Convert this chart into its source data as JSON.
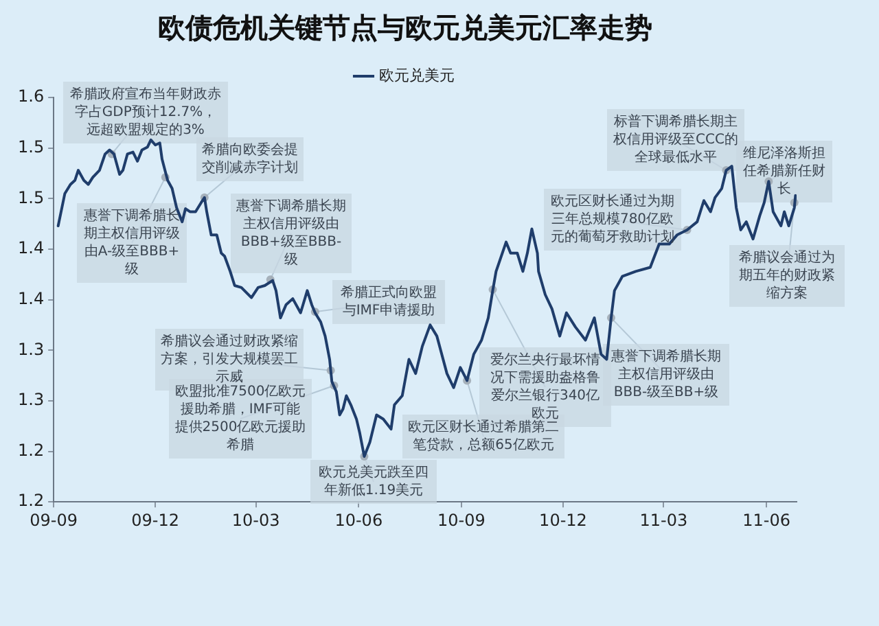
{
  "chart_data": {
    "type": "line",
    "title": "欧债危机关键节点与欧元兑美元汇率走势",
    "xlim": [
      "2009-09-01",
      "2011-06-28"
    ],
    "xticks": [
      {
        "value": "2009-09",
        "label": "09-09"
      },
      {
        "value": "2009-12",
        "label": "09-12"
      },
      {
        "value": "2010-03",
        "label": "10-03"
      },
      {
        "value": "2010-06",
        "label": "10-06"
      },
      {
        "value": "2010-09",
        "label": "10-09"
      },
      {
        "value": "2010-12",
        "label": "10-12"
      },
      {
        "value": "2011-03",
        "label": "11-03"
      },
      {
        "value": "2011-06",
        "label": "11-06"
      }
    ],
    "ylim": [
      1.15,
      1.55
    ],
    "yticks": [
      {
        "value": 1.15,
        "label": "1.2"
      },
      {
        "value": 1.2,
        "label": "1.2"
      },
      {
        "value": 1.25,
        "label": "1.3"
      },
      {
        "value": 1.3,
        "label": "1.3"
      },
      {
        "value": 1.35,
        "label": "1.4"
      },
      {
        "value": 1.4,
        "label": "1.4"
      },
      {
        "value": 1.45,
        "label": "1.5"
      },
      {
        "value": 1.5,
        "label": "1.5"
      },
      {
        "value": 1.55,
        "label": "1.6"
      }
    ],
    "grid": false,
    "legend": "top",
    "line_style": "solid",
    "series": [
      {
        "name": "欧元兑美元",
        "color": "#1f3d6b",
        "x": [
          "2009-09-05",
          "2009-09-11",
          "2009-09-16",
          "2009-09-20",
          "2009-09-23",
          "2009-09-28",
          "2009-10-02",
          "2009-10-06",
          "2009-10-12",
          "2009-10-17",
          "2009-10-21",
          "2009-10-25",
          "2009-10-30",
          "2009-11-02",
          "2009-11-06",
          "2009-11-11",
          "2009-11-15",
          "2009-11-19",
          "2009-11-24",
          "2009-11-27",
          "2009-12-01",
          "2009-12-05",
          "2009-12-07",
          "2009-12-12",
          "2009-12-16",
          "2009-12-20",
          "2009-12-25",
          "2009-12-28",
          "2010-01-01",
          "2010-01-06",
          "2010-01-11",
          "2010-01-14",
          "2010-01-16",
          "2010-01-20",
          "2010-01-25",
          "2010-01-29",
          "2010-02-01",
          "2010-02-06",
          "2010-02-10",
          "2010-02-16",
          "2010-02-25",
          "2010-03-03",
          "2010-03-09",
          "2010-03-16",
          "2010-03-19",
          "2010-03-23",
          "2010-03-28",
          "2010-04-03",
          "2010-04-10",
          "2010-04-16",
          "2010-04-20",
          "2010-04-23",
          "2010-04-28",
          "2010-05-02",
          "2010-05-06",
          "2010-05-08",
          "2010-05-12",
          "2010-05-15",
          "2010-05-18",
          "2010-05-21",
          "2010-05-25",
          "2010-05-30",
          "2010-06-02",
          "2010-06-06",
          "2010-06-11",
          "2010-06-17",
          "2010-06-23",
          "2010-06-30",
          "2010-07-03",
          "2010-07-10",
          "2010-07-16",
          "2010-07-22",
          "2010-07-28",
          "2010-08-04",
          "2010-08-10",
          "2010-08-19",
          "2010-08-25",
          "2010-08-31",
          "2010-09-06",
          "2010-09-12",
          "2010-09-19",
          "2010-09-25",
          "2010-09-29",
          "2010-10-02",
          "2010-10-11",
          "2010-10-15",
          "2010-10-21",
          "2010-10-26",
          "2010-10-30",
          "2010-11-03",
          "2010-11-08",
          "2010-11-09",
          "2010-11-15",
          "2010-11-21",
          "2010-11-28",
          "2010-12-04",
          "2010-12-12",
          "2010-12-21",
          "2010-12-29",
          "2011-01-04",
          "2011-01-09",
          "2011-01-13",
          "2011-01-16",
          "2011-01-23",
          "2011-02-04",
          "2011-02-17",
          "2011-02-25",
          "2011-03-06",
          "2011-03-13",
          "2011-03-22",
          "2011-03-31",
          "2011-04-06",
          "2011-04-12",
          "2011-04-16",
          "2011-04-22",
          "2011-04-26",
          "2011-05-01",
          "2011-05-05",
          "2011-05-09",
          "2011-05-14",
          "2011-05-20",
          "2011-05-26",
          "2011-05-30",
          "2011-06-03",
          "2011-06-07",
          "2011-06-14",
          "2011-06-17",
          "2011-06-21",
          "2011-06-26",
          "2011-06-27"
        ],
        "values": [
          1.423,
          1.455,
          1.464,
          1.468,
          1.478,
          1.468,
          1.464,
          1.471,
          1.478,
          1.494,
          1.498,
          1.494,
          1.474,
          1.478,
          1.494,
          1.496,
          1.487,
          1.498,
          1.501,
          1.508,
          1.503,
          1.505,
          1.489,
          1.468,
          1.46,
          1.441,
          1.427,
          1.44,
          1.437,
          1.437,
          1.446,
          1.451,
          1.437,
          1.414,
          1.414,
          1.396,
          1.393,
          1.378,
          1.364,
          1.362,
          1.352,
          1.362,
          1.364,
          1.369,
          1.359,
          1.332,
          1.345,
          1.351,
          1.337,
          1.359,
          1.345,
          1.337,
          1.328,
          1.314,
          1.291,
          1.269,
          1.259,
          1.236,
          1.242,
          1.255,
          1.246,
          1.232,
          1.218,
          1.195,
          1.209,
          1.236,
          1.232,
          1.222,
          1.246,
          1.255,
          1.291,
          1.277,
          1.304,
          1.325,
          1.314,
          1.277,
          1.263,
          1.283,
          1.27,
          1.296,
          1.31,
          1.332,
          1.359,
          1.378,
          1.407,
          1.396,
          1.396,
          1.378,
          1.396,
          1.42,
          1.396,
          1.378,
          1.355,
          1.341,
          1.314,
          1.337,
          1.323,
          1.31,
          1.332,
          1.296,
          1.291,
          1.332,
          1.359,
          1.373,
          1.378,
          1.382,
          1.405,
          1.405,
          1.414,
          1.419,
          1.427,
          1.448,
          1.437,
          1.451,
          1.46,
          1.478,
          1.482,
          1.441,
          1.419,
          1.427,
          1.41,
          1.433,
          1.446,
          1.467,
          1.437,
          1.423,
          1.437,
          1.423,
          1.441,
          1.453
        ]
      }
    ],
    "annotations": [
      {
        "text": "希腊政府宣布当年财政赤字占GDP预计12.7%，远超欧盟规定的3%",
        "x": "2009-10-23",
        "y": 1.494
      },
      {
        "text": "希腊向欧委会提交削减赤字计划",
        "x": "2010-01-14",
        "y": 1.451
      },
      {
        "text": "惠誉下调希腊长期主权信用评级由A-级至BBB+级",
        "x": "2009-12-10",
        "y": 1.471
      },
      {
        "text": "惠誉下调希腊长期主权信用评级由BBB+级至BBB-级",
        "x": "2010-03-14",
        "y": 1.37
      },
      {
        "text": "希腊正式向欧盟与IMF申请援助",
        "x": "2010-04-23",
        "y": 1.338
      },
      {
        "text": "希腊议会通过财政紧缩方案，引发大规模罢工示威",
        "x": "2010-05-07",
        "y": 1.28
      },
      {
        "text": "欧盟批准7500亿欧元援助希腊，IMF可能提供2500亿欧元援助希腊",
        "x": "2010-05-10",
        "y": 1.265
      },
      {
        "text": "欧元兑美元跌至四年新低1.19美元",
        "x": "2010-06-06",
        "y": 1.195
      },
      {
        "text": "欧元区财长通过希腊第二笔贷款，总额65亿欧元",
        "x": "2010-09-06",
        "y": 1.27
      },
      {
        "text": "爱尔兰央行最坏情况下需援助盎格鲁爱尔兰银行340亿欧元",
        "x": "2010-09-29",
        "y": 1.36
      },
      {
        "text": "欧元区财长通过为期三年总规模780亿欧元的葡萄牙救助计划",
        "x": "2011-03-22",
        "y": 1.419
      },
      {
        "text": "惠誉下调希腊长期主权信用评级由BBB-级至BB+级",
        "x": "2011-01-13",
        "y": 1.332
      },
      {
        "text": "标普下调希腊长期主权信用评级至CCC的全球最低水平",
        "x": "2011-04-26",
        "y": 1.478
      },
      {
        "text": "维尼泽洛斯担任希腊新任财长",
        "x": "2011-06-03",
        "y": 1.467
      },
      {
        "text": "希腊议会通过为期五年的财政紧缩方案",
        "x": "2011-06-26",
        "y": 1.446
      }
    ]
  }
}
